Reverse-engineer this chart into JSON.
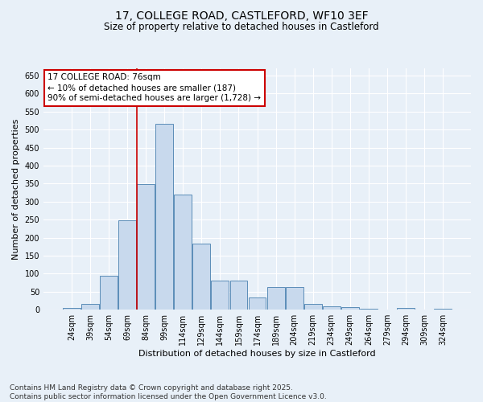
{
  "title_line1": "17, COLLEGE ROAD, CASTLEFORD, WF10 3EF",
  "title_line2": "Size of property relative to detached houses in Castleford",
  "xlabel": "Distribution of detached houses by size in Castleford",
  "ylabel": "Number of detached properties",
  "categories": [
    "24sqm",
    "39sqm",
    "54sqm",
    "69sqm",
    "84sqm",
    "99sqm",
    "114sqm",
    "129sqm",
    "144sqm",
    "159sqm",
    "174sqm",
    "189sqm",
    "204sqm",
    "219sqm",
    "234sqm",
    "249sqm",
    "264sqm",
    "279sqm",
    "294sqm",
    "309sqm",
    "324sqm"
  ],
  "values": [
    5,
    15,
    95,
    248,
    348,
    515,
    320,
    183,
    80,
    80,
    35,
    63,
    63,
    15,
    10,
    7,
    2,
    0,
    6,
    0,
    2
  ],
  "bar_color": "#c8d9ed",
  "bar_edge_color": "#5b8db8",
  "vline_x_index": 3.5,
  "vline_color": "#cc0000",
  "annotation_text": "17 COLLEGE ROAD: 76sqm\n← 10% of detached houses are smaller (187)\n90% of semi-detached houses are larger (1,728) →",
  "annotation_box_color": "#ffffff",
  "annotation_box_edge_color": "#cc0000",
  "ylim": [
    0,
    670
  ],
  "yticks": [
    0,
    50,
    100,
    150,
    200,
    250,
    300,
    350,
    400,
    450,
    500,
    550,
    600,
    650
  ],
  "background_color": "#e8f0f8",
  "grid_color": "#ffffff",
  "footer_line1": "Contains HM Land Registry data © Crown copyright and database right 2025.",
  "footer_line2": "Contains public sector information licensed under the Open Government Licence v3.0.",
  "title_fontsize": 10,
  "subtitle_fontsize": 8.5,
  "axis_label_fontsize": 8,
  "tick_fontsize": 7,
  "annotation_fontsize": 7.5,
  "footer_fontsize": 6.5
}
